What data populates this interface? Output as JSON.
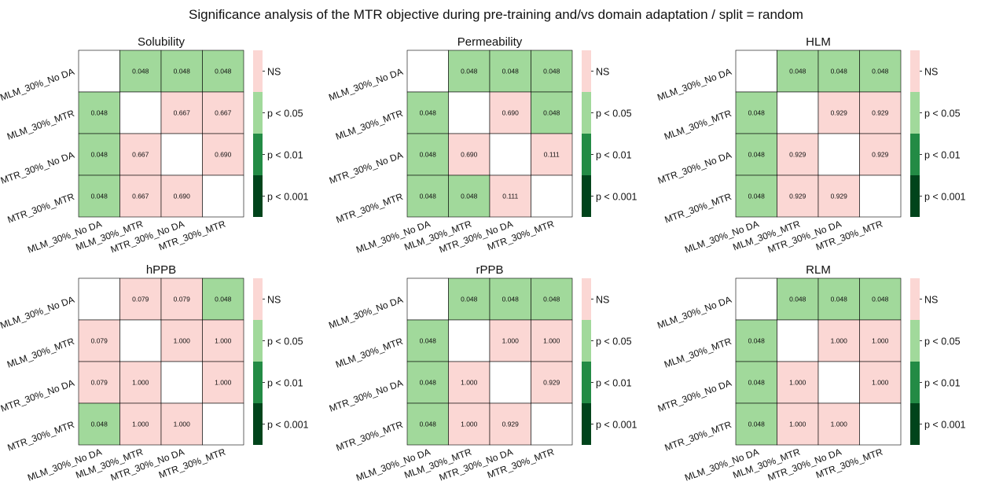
{
  "title": "Significance analysis of the MTR objective during pre-training and/vs domain adaptation / split = random",
  "labels": [
    "MLM_30%_No DA",
    "MLM_30%_MTR",
    "MTR_30%_No DA",
    "MTR_30%_MTR"
  ],
  "legend": [
    {
      "label": "NS",
      "color": "#fbd7d4"
    },
    {
      "label": "p < 0.05",
      "color": "#a1d99b"
    },
    {
      "label": "p < 0.01",
      "color": "#238b45"
    },
    {
      "label": "p < 0.001",
      "color": "#00441b"
    }
  ],
  "chart_data": [
    {
      "type": "heatmap",
      "title": "Solubility",
      "values": [
        [
          null,
          "0.048",
          "0.048",
          "0.048"
        ],
        [
          "0.048",
          null,
          "0.667",
          "0.667"
        ],
        [
          "0.048",
          "0.667",
          null,
          "0.690"
        ],
        [
          "0.048",
          "0.667",
          "0.690",
          null
        ]
      ]
    },
    {
      "type": "heatmap",
      "title": "Permeability",
      "values": [
        [
          null,
          "0.048",
          "0.048",
          "0.048"
        ],
        [
          "0.048",
          null,
          "0.690",
          "0.048"
        ],
        [
          "0.048",
          "0.690",
          null,
          "0.111"
        ],
        [
          "0.048",
          "0.048",
          "0.111",
          null
        ]
      ]
    },
    {
      "type": "heatmap",
      "title": "HLM",
      "values": [
        [
          null,
          "0.048",
          "0.048",
          "0.048"
        ],
        [
          "0.048",
          null,
          "0.929",
          "0.929"
        ],
        [
          "0.048",
          "0.929",
          null,
          "0.929"
        ],
        [
          "0.048",
          "0.929",
          "0.929",
          null
        ]
      ]
    },
    {
      "type": "heatmap",
      "title": "hPPB",
      "values": [
        [
          null,
          "0.079",
          "0.079",
          "0.048"
        ],
        [
          "0.079",
          null,
          "1.000",
          "1.000"
        ],
        [
          "0.079",
          "1.000",
          null,
          "1.000"
        ],
        [
          "0.048",
          "1.000",
          "1.000",
          null
        ]
      ]
    },
    {
      "type": "heatmap",
      "title": "rPPB",
      "values": [
        [
          null,
          "0.048",
          "0.048",
          "0.048"
        ],
        [
          "0.048",
          null,
          "1.000",
          "1.000"
        ],
        [
          "0.048",
          "1.000",
          null,
          "0.929"
        ],
        [
          "0.048",
          "1.000",
          "0.929",
          null
        ]
      ]
    },
    {
      "type": "heatmap",
      "title": "RLM",
      "values": [
        [
          null,
          "0.048",
          "0.048",
          "0.048"
        ],
        [
          "0.048",
          null,
          "1.000",
          "1.000"
        ],
        [
          "0.048",
          "1.000",
          null,
          "1.000"
        ],
        [
          "0.048",
          "1.000",
          "1.000",
          null
        ]
      ]
    }
  ]
}
